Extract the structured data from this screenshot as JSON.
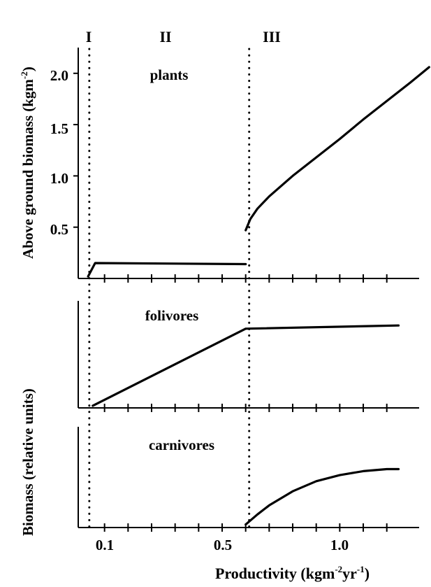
{
  "chart_data": {
    "type": "line",
    "xlabel": "Productivity  (kgm",
    "xlabel_unit_exp1": "-2",
    "xlabel_unit_mid": "yr",
    "xlabel_unit_exp2": "-1",
    "xlabel_close": ")",
    "x_tick_labels": [
      "0.1",
      "0.5",
      "1.0"
    ],
    "x_tick_values": [
      0.1,
      0.5,
      1.0
    ],
    "xlim": [
      0.0,
      1.35
    ],
    "regions": [
      {
        "label": "I",
        "boundary_x": 0.05
      },
      {
        "label": "II",
        "boundary_x": 0.7
      },
      {
        "label": "III"
      }
    ],
    "panels": [
      {
        "id": "plants",
        "title": "plants",
        "ylabel": "Above ground biomass  (kgm",
        "ylabel_exp": "-2",
        "ylabel_close": ")",
        "y_tick_labels": [
          "2.0",
          "1.5",
          "1.0",
          "0.5"
        ],
        "y_tick_values": [
          2.0,
          1.5,
          1.0,
          0.5
        ],
        "ylim": [
          0.0,
          2.25
        ],
        "segments": [
          [
            [
              0.03,
              0.02
            ],
            [
              0.06,
              0.15
            ],
            [
              0.7,
              0.14
            ]
          ],
          [
            [
              0.7,
              0.47
            ],
            [
              0.72,
              0.58
            ],
            [
              0.75,
              0.68
            ],
            [
              0.8,
              0.8
            ],
            [
              0.9,
              1.0
            ],
            [
              1.0,
              1.18
            ],
            [
              1.1,
              1.36
            ],
            [
              1.2,
              1.55
            ],
            [
              1.3,
              1.73
            ],
            [
              1.4,
              1.91
            ],
            [
              1.48,
              2.06
            ]
          ]
        ]
      },
      {
        "id": "folivores",
        "title": "folivores",
        "ylim": [
          0,
          1.0
        ],
        "segments": [
          [
            [
              0.05,
              0.02
            ],
            [
              0.7,
              0.74
            ],
            [
              1.35,
              0.77
            ]
          ]
        ]
      },
      {
        "id": "carnivores",
        "title": "carnivores",
        "ylim": [
          0,
          1.0
        ],
        "segments": [
          [
            [
              0.7,
              0.03
            ],
            [
              0.75,
              0.13
            ],
            [
              0.8,
              0.22
            ],
            [
              0.9,
              0.36
            ],
            [
              1.0,
              0.46
            ],
            [
              1.1,
              0.52
            ],
            [
              1.2,
              0.56
            ],
            [
              1.3,
              0.58
            ],
            [
              1.35,
              0.58
            ]
          ]
        ]
      }
    ],
    "shared_ylabel": "Biomass (relative units)"
  }
}
